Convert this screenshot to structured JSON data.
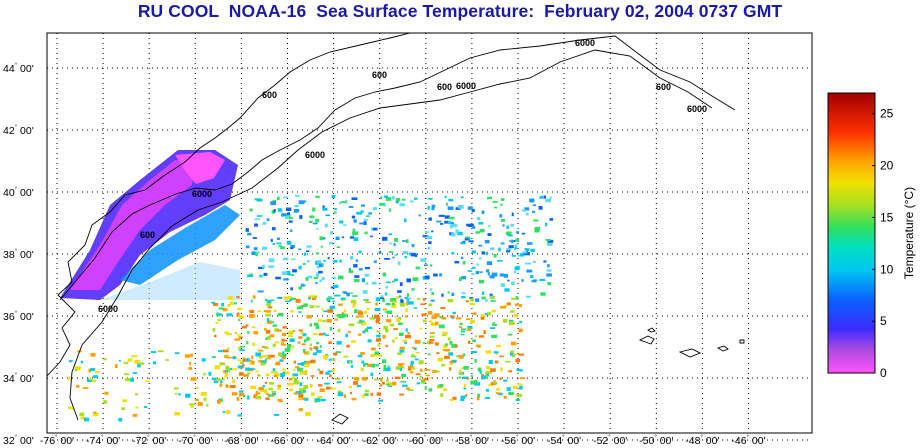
{
  "title": "RU COOL  NOAA-16  Sea Surface Temperature:  February 02, 2004 0737 GMT",
  "lat_labels": [
    "44",
    "42",
    "40",
    "38",
    "36",
    "34",
    "32"
  ],
  "lon_labels": [
    "-76",
    "-74",
    "-72",
    "-70",
    "-68",
    "-66",
    "-64",
    "-62",
    "-60",
    "-58",
    "-56",
    "-54",
    "-52",
    "-50",
    "-48",
    "-46"
  ],
  "minute_suffix": "00'",
  "isobath_labels": [
    "6000",
    "600",
    "6000",
    "600",
    "6000",
    "600",
    "6000",
    "600",
    "6000",
    "600",
    "6000"
  ],
  "colorbar": {
    "label": "Temperature (°C)",
    "ticks": [
      "25",
      "20",
      "15",
      "10",
      "5",
      "0"
    ],
    "min": 0,
    "max": 27
  },
  "colors": {
    "title": "#1a1aa8",
    "land_line": "#000000",
    "grid": "#000000"
  }
}
